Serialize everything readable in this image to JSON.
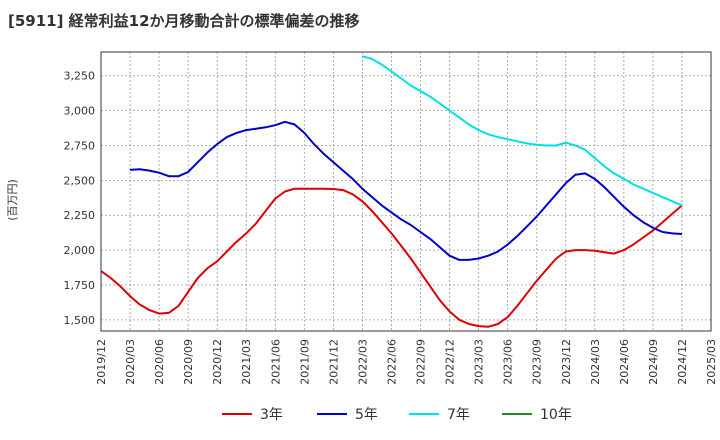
{
  "chart_data": {
    "type": "line",
    "title": "[5911]  経常利益12か月移動合計の標準偏差の推移",
    "ylabel": "(百万円)",
    "xlabel": "",
    "ylim": [
      1420,
      3420
    ],
    "yticks": [
      1500,
      1750,
      2000,
      2250,
      2500,
      2750,
      3000,
      3250
    ],
    "ytick_labels": [
      "1,500",
      "1,750",
      "2,000",
      "2,250",
      "2,500",
      "2,750",
      "3,000",
      "3,250"
    ],
    "xticks": [
      "2019/12",
      "2020/03",
      "2020/06",
      "2020/09",
      "2020/12",
      "2021/03",
      "2021/06",
      "2021/09",
      "2021/12",
      "2022/03",
      "2022/06",
      "2022/09",
      "2022/12",
      "2023/03",
      "2023/06",
      "2023/09",
      "2023/12",
      "2024/03",
      "2024/06",
      "2024/09",
      "2024/12",
      "2025/03"
    ],
    "x_months": [
      "2019/12",
      "2020/01",
      "2020/02",
      "2020/03",
      "2020/04",
      "2020/05",
      "2020/06",
      "2020/07",
      "2020/08",
      "2020/09",
      "2020/10",
      "2020/11",
      "2020/12",
      "2021/01",
      "2021/02",
      "2021/03",
      "2021/04",
      "2021/05",
      "2021/06",
      "2021/07",
      "2021/08",
      "2021/09",
      "2021/10",
      "2021/11",
      "2021/12",
      "2022/01",
      "2022/02",
      "2022/03",
      "2022/04",
      "2022/05",
      "2022/06",
      "2022/07",
      "2022/08",
      "2022/09",
      "2022/10",
      "2022/11",
      "2022/12",
      "2023/01",
      "2023/02",
      "2023/03",
      "2023/04",
      "2023/05",
      "2023/06",
      "2023/07",
      "2023/08",
      "2023/09",
      "2023/10",
      "2023/11",
      "2023/12",
      "2024/01",
      "2024/02",
      "2024/03",
      "2024/04",
      "2024/05",
      "2024/06",
      "2024/07",
      "2024/08",
      "2024/09",
      "2024/10",
      "2024/11",
      "2024/12"
    ],
    "grid": true,
    "legend_position": "bottom",
    "series": [
      {
        "name": "3年",
        "color": "#dd0000",
        "values": [
          1850,
          1800,
          1740,
          1670,
          1610,
          1570,
          1545,
          1550,
          1600,
          1700,
          1800,
          1870,
          1920,
          1990,
          2060,
          2120,
          2190,
          2280,
          2370,
          2420,
          2440,
          2440,
          2440,
          2440,
          2438,
          2430,
          2400,
          2350,
          2280,
          2200,
          2120,
          2030,
          1940,
          1840,
          1740,
          1640,
          1560,
          1500,
          1470,
          1455,
          1450,
          1470,
          1520,
          1600,
          1690,
          1780,
          1860,
          1940,
          1990,
          2000,
          2000,
          1995,
          1985,
          1975,
          2000,
          2040,
          2090,
          2140,
          2200,
          2260,
          2320
        ]
      },
      {
        "name": "5年",
        "color": "#0000cc",
        "values": [
          null,
          null,
          null,
          2575,
          2580,
          2570,
          2555,
          2530,
          2530,
          2560,
          2630,
          2700,
          2760,
          2810,
          2840,
          2860,
          2870,
          2880,
          2895,
          2920,
          2900,
          2840,
          2760,
          2690,
          2630,
          2570,
          2510,
          2440,
          2380,
          2320,
          2270,
          2220,
          2180,
          2130,
          2080,
          2020,
          1960,
          1930,
          1930,
          1940,
          1960,
          1990,
          2040,
          2100,
          2170,
          2240,
          2320,
          2400,
          2480,
          2540,
          2550,
          2510,
          2450,
          2380,
          2310,
          2250,
          2200,
          2160,
          2130,
          2120,
          2115
        ]
      },
      {
        "name": "7年",
        "color": "#00e0e0",
        "values": [
          null,
          null,
          null,
          null,
          null,
          null,
          null,
          null,
          null,
          null,
          null,
          null,
          null,
          null,
          null,
          null,
          null,
          null,
          null,
          null,
          null,
          null,
          null,
          null,
          null,
          null,
          null,
          3390,
          3370,
          3330,
          3280,
          3230,
          3180,
          3140,
          3100,
          3050,
          3000,
          2950,
          2900,
          2860,
          2830,
          2810,
          2795,
          2780,
          2765,
          2755,
          2750,
          2750,
          2770,
          2750,
          2720,
          2660,
          2600,
          2550,
          2510,
          2470,
          2440,
          2410,
          2380,
          2350,
          2320
        ]
      },
      {
        "name": "10年",
        "color": "#228b22",
        "values": []
      }
    ]
  }
}
